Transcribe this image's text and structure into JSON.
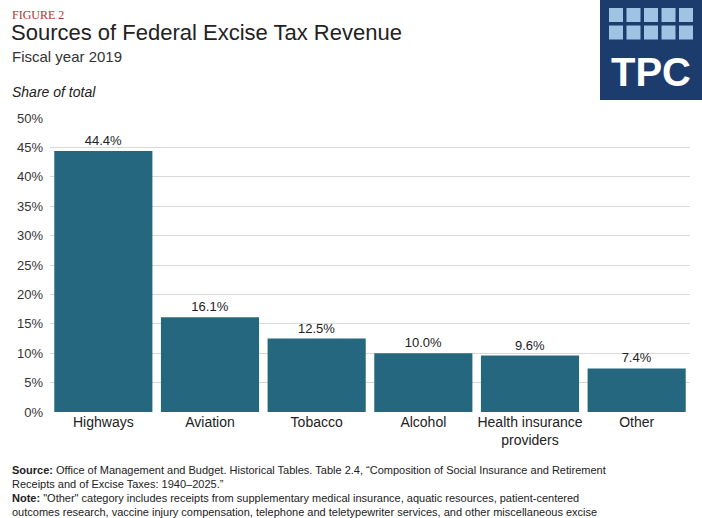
{
  "chart_data": {
    "type": "bar",
    "figure_label": "FIGURE 2",
    "title": "Sources of Federal Excise Tax Revenue",
    "subtitle": "Fiscal year 2019",
    "ylabel": "Share of total",
    "logo": "TPC",
    "categories": [
      "Highways",
      "Aviation",
      "Tobacco",
      "Alcohol",
      "Health insurance providers",
      "Other"
    ],
    "values": [
      44.4,
      16.1,
      12.5,
      10.0,
      9.6,
      7.4
    ],
    "value_labels": [
      "44.4%",
      "16.1%",
      "12.5%",
      "10.0%",
      "9.6%",
      "7.4%"
    ],
    "data_labels": true,
    "color": "#24677f",
    "ylim": [
      0,
      50
    ],
    "yticks": [
      {
        "value": 0,
        "label": "0%"
      },
      {
        "value": 5,
        "label": "5%"
      },
      {
        "value": 10,
        "label": "10%"
      },
      {
        "value": 15,
        "label": "15%"
      },
      {
        "value": 20,
        "label": "20%"
      },
      {
        "value": 25,
        "label": "25%"
      },
      {
        "value": 30,
        "label": "30%"
      },
      {
        "value": 35,
        "label": "35%"
      },
      {
        "value": 40,
        "label": "40%"
      },
      {
        "value": 45,
        "label": "45%"
      },
      {
        "value": 50,
        "label": "50%"
      }
    ],
    "grid": true,
    "source": "Source: Office of Management and Budget. Historical Tables. Table 2.4, “Composition of Social Insurance and Retirement Receipts and of Excise Taxes: 1940–2025.”",
    "note": "Note: \"Other\" category includes receipts from supplementary medical insurance, aquatic resources, patient-centered outcomes research, vaccine injury compensation, telephone and teletypewriter services, and other miscellaneous excise taxes."
  }
}
